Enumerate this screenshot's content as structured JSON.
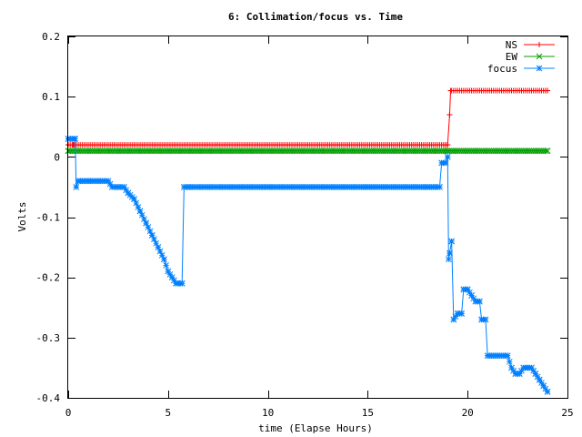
{
  "chart_data": {
    "type": "line",
    "title": "6: Collimation/focus vs. Time",
    "xlabel": "time (Elapse Hours)",
    "ylabel": "Volts",
    "xlim": [
      0,
      25
    ],
    "ylim": [
      -0.4,
      0.2
    ],
    "x_ticks": [
      0,
      5,
      10,
      15,
      20,
      25
    ],
    "y_ticks": [
      0.2,
      0.1,
      0,
      -0.1,
      -0.2,
      -0.3,
      -0.4
    ],
    "x_tick_labels": [
      "0",
      "5",
      "10",
      "15",
      "20",
      "25"
    ],
    "y_tick_labels": [
      "0.2",
      "0.1",
      "0",
      "-0.1",
      "-0.2",
      "-0.3",
      "-0.4"
    ],
    "grid": false,
    "legend_position": "top-right",
    "series": [
      {
        "name": "NS",
        "color": "#ff0000",
        "marker": "plus",
        "x": [
          0.0,
          0.25,
          18.9,
          19.0,
          19.1,
          19.15,
          24.0
        ],
        "y": [
          0.02,
          0.02,
          0.02,
          0.02,
          0.07,
          0.11,
          0.11
        ]
      },
      {
        "name": "EW",
        "color": "#00a000",
        "marker": "cross",
        "x": [
          0.0,
          19.0,
          24.0
        ],
        "y": [
          0.01,
          0.01,
          0.01
        ]
      },
      {
        "name": "focus",
        "color": "#0080ff",
        "marker": "star",
        "x": [
          0.0,
          0.35,
          0.4,
          0.5,
          0.6,
          1.0,
          2.0,
          2.2,
          2.8,
          3.0,
          3.3,
          3.6,
          3.9,
          4.2,
          4.5,
          4.8,
          5.0,
          5.2,
          5.4,
          5.7,
          5.8,
          6.0,
          10.0,
          15.0,
          18.0,
          18.6,
          18.7,
          18.9,
          19.0,
          19.05,
          19.1,
          19.2,
          19.3,
          19.5,
          19.7,
          19.8,
          20.0,
          20.2,
          20.4,
          20.6,
          20.7,
          20.9,
          21.0,
          21.2,
          22.0,
          22.2,
          22.4,
          22.6,
          22.8,
          23.0,
          23.2,
          23.4,
          23.6,
          23.8,
          24.0
        ],
        "y": [
          0.03,
          0.03,
          -0.05,
          -0.04,
          -0.04,
          -0.04,
          -0.04,
          -0.05,
          -0.05,
          -0.06,
          -0.07,
          -0.09,
          -0.11,
          -0.13,
          -0.15,
          -0.17,
          -0.19,
          -0.2,
          -0.21,
          -0.21,
          -0.05,
          -0.05,
          -0.05,
          -0.05,
          -0.05,
          -0.05,
          -0.01,
          -0.01,
          0.0,
          -0.17,
          -0.16,
          -0.14,
          -0.27,
          -0.26,
          -0.26,
          -0.22,
          -0.22,
          -0.23,
          -0.24,
          -0.24,
          -0.27,
          -0.27,
          -0.33,
          -0.33,
          -0.33,
          -0.35,
          -0.36,
          -0.36,
          -0.35,
          -0.35,
          -0.35,
          -0.36,
          -0.37,
          -0.38,
          -0.39
        ]
      }
    ]
  }
}
